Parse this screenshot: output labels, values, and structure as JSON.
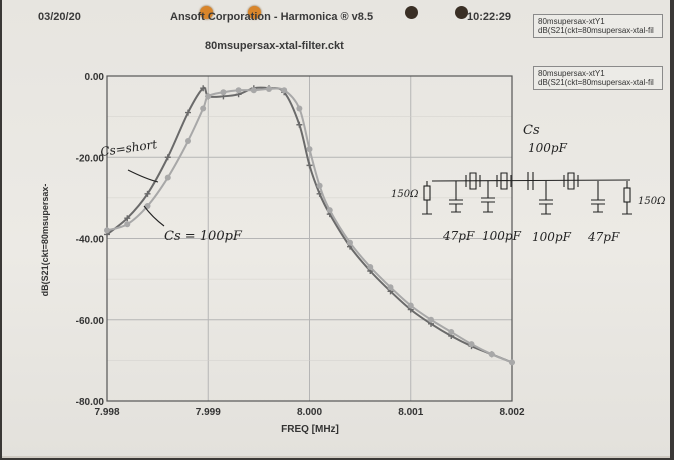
{
  "header": {
    "date": "03/20/20",
    "title": "Ansoft Corporation - Harmonica ® v8.5",
    "time": "10:22:29",
    "subtitle": "80msupersax-xtal-filter.ckt"
  },
  "legend": {
    "box1": [
      "80msupersax-xtY1",
      "dB(S21(ckt=80msupersax-xtal-fil"
    ],
    "box2": [
      "80msupersax-xtY1",
      "dB(S21(ckt=80msupersax-xtal-fil"
    ]
  },
  "annotations": {
    "cs_short": "Cs=short",
    "cs_100": "Cs = 100pF",
    "cs_label": "Cs",
    "cs_value": "100pF",
    "r_left": "150Ω",
    "r_right": "150Ω",
    "caps": [
      "47pF",
      "100pF",
      "100pF",
      "47pF"
    ]
  },
  "colors": {
    "series_short": "#6a6a6a",
    "series_100pf": "#a8a8a8",
    "grid": "#b5b5b5",
    "hole_orange": "#e08a2a",
    "hole_dark": "#3a2f25"
  },
  "chart_data": {
    "type": "line",
    "title": "80msupersax-xtal-filter.ckt",
    "xlabel": "FREQ [MHz]",
    "ylabel": "dB(S21(ckt=80msupersax-",
    "xlim": [
      7.998,
      8.002
    ],
    "ylim": [
      -80,
      0
    ],
    "xticks": [
      "7.998",
      "7.999",
      "8.000",
      "8.001",
      "8.002"
    ],
    "yticks": [
      "0.00",
      "-20.00",
      "-40.00",
      "-60.00",
      "-80.00"
    ],
    "grid": true,
    "series": [
      {
        "name": "Cs=short",
        "marker": "cross",
        "x": [
          7.998,
          7.9982,
          7.9984,
          7.9986,
          7.9988,
          7.99895,
          7.999,
          7.99915,
          7.9993,
          7.99945,
          7.9996,
          7.99975,
          7.9999,
          8.0,
          8.0001,
          8.0002,
          8.0004,
          8.0006,
          8.0008,
          8.001,
          8.0012,
          8.0014,
          8.0016,
          8.0018,
          8.002
        ],
        "y": [
          -39,
          -35,
          -29,
          -20,
          -9,
          -3,
          -5,
          -5,
          -4.5,
          -3,
          -3,
          -4,
          -12,
          -22,
          -29,
          -34,
          -42,
          -48,
          -53,
          -57.5,
          -61,
          -64,
          -66.5,
          -68.5,
          -70.5
        ]
      },
      {
        "name": "Cs = 100pF",
        "marker": "circle",
        "x": [
          7.998,
          7.9982,
          7.9984,
          7.9986,
          7.9988,
          7.99895,
          7.999,
          7.99915,
          7.9993,
          7.99945,
          7.9996,
          7.99975,
          7.9999,
          8.0,
          8.0001,
          8.0002,
          8.0004,
          8.0006,
          8.0008,
          8.001,
          8.0012,
          8.0014,
          8.0016,
          8.0018,
          8.002
        ],
        "y": [
          -38,
          -36.5,
          -32,
          -25,
          -16,
          -8,
          -5,
          -4,
          -3.5,
          -3.5,
          -3.2,
          -3.5,
          -8,
          -18,
          -27,
          -33,
          -41,
          -47,
          -52,
          -56.5,
          -60,
          -63,
          -66,
          -68.5,
          -70.5
        ]
      }
    ]
  }
}
